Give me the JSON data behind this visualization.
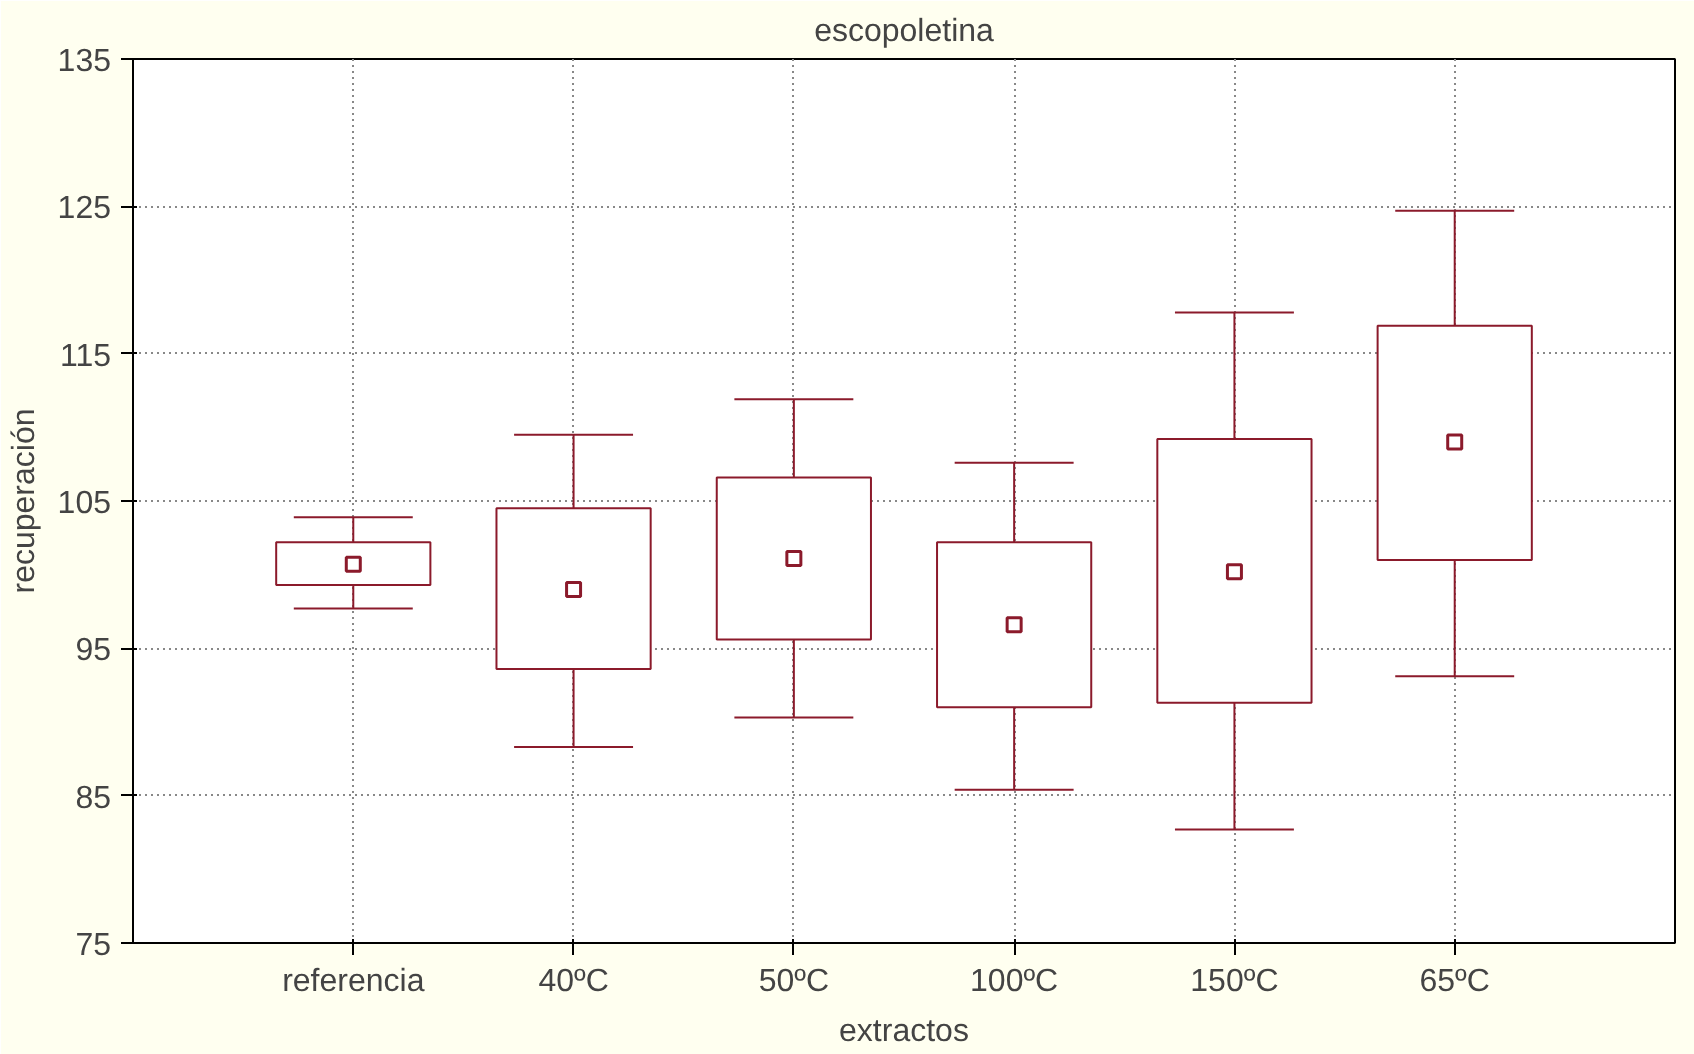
{
  "chart_data": {
    "type": "box",
    "title": "escopoletina",
    "xlabel": "extractos",
    "ylabel": "recuperación",
    "categories": [
      "referencia",
      "40ºC",
      "50ºC",
      "100ºC",
      "150ºC",
      "65ºC"
    ],
    "color": "#8b1a2b",
    "boxes": [
      {
        "low": 97.7,
        "q1": 99.3,
        "median": 100.7,
        "q3": 102.2,
        "high": 103.9
      },
      {
        "low": 88.3,
        "q1": 93.6,
        "median": 99.0,
        "q3": 104.5,
        "high": 109.5
      },
      {
        "low": 90.3,
        "q1": 95.6,
        "median": 101.1,
        "q3": 106.6,
        "high": 111.9
      },
      {
        "low": 85.4,
        "q1": 91.0,
        "median": 96.6,
        "q3": 102.2,
        "high": 107.6
      },
      {
        "low": 82.7,
        "q1": 91.3,
        "median": 100.2,
        "q3": 109.2,
        "high": 117.8
      },
      {
        "low": 93.1,
        "q1": 101.0,
        "median": 109.0,
        "q3": 116.9,
        "high": 124.7
      }
    ],
    "marker": "square",
    "ylim": [
      75,
      135
    ],
    "yticks": [
      75,
      85,
      95,
      105,
      115,
      125,
      135
    ],
    "grid": true
  }
}
